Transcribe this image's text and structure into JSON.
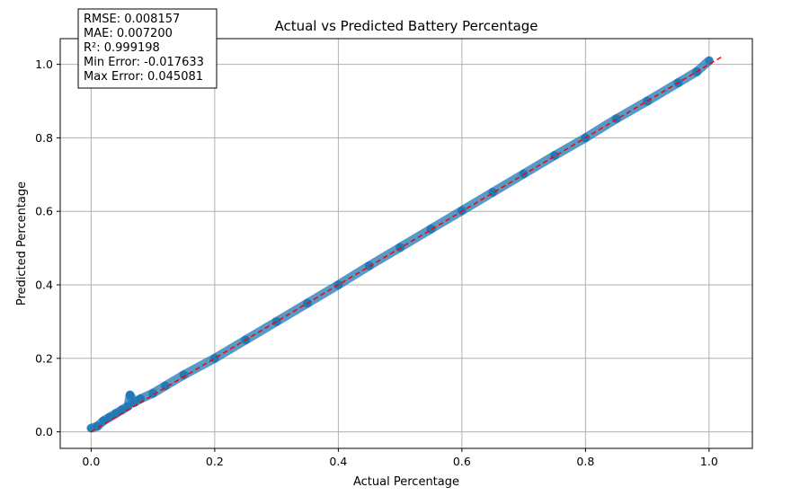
{
  "chart_data": {
    "type": "scatter",
    "title": "Actual vs Predicted Battery Percentage",
    "xlabel": "Actual Percentage",
    "ylabel": "Predicted Percentage",
    "xlim": [
      -0.05,
      1.07
    ],
    "ylim": [
      -0.045,
      1.07
    ],
    "x_ticks": [
      0.0,
      0.2,
      0.4,
      0.6,
      0.8,
      1.0
    ],
    "y_ticks": [
      0.0,
      0.2,
      0.4,
      0.6,
      0.8,
      1.0
    ],
    "x_tick_labels": [
      "0.0",
      "0.2",
      "0.4",
      "0.6",
      "0.8",
      "1.0"
    ],
    "y_tick_labels": [
      "0.0",
      "0.2",
      "0.4",
      "0.6",
      "0.8",
      "1.0"
    ],
    "grid": true,
    "series": [
      {
        "color": "#1f77b4",
        "x": [
          0.0,
          0.01,
          0.02,
          0.03,
          0.04,
          0.05,
          0.06,
          0.063,
          0.07,
          0.08,
          0.1,
          0.12,
          0.15,
          0.2,
          0.25,
          0.3,
          0.35,
          0.4,
          0.45,
          0.5,
          0.55,
          0.6,
          0.65,
          0.7,
          0.75,
          0.8,
          0.85,
          0.9,
          0.95,
          0.98,
          1.0
        ],
        "y": [
          0.01,
          0.015,
          0.03,
          0.04,
          0.05,
          0.06,
          0.07,
          0.1,
          0.08,
          0.09,
          0.105,
          0.125,
          0.155,
          0.2,
          0.25,
          0.3,
          0.35,
          0.4,
          0.452,
          0.502,
          0.552,
          0.602,
          0.652,
          0.702,
          0.752,
          0.8,
          0.852,
          0.9,
          0.95,
          0.98,
          1.01
        ]
      }
    ],
    "reference_line": {
      "color": "#ff0000",
      "style": "dashed",
      "x": [
        0.0,
        1.02
      ],
      "y": [
        0.0,
        1.02
      ]
    },
    "stats_box": {
      "lines": [
        "RMSE: 0.008157",
        "MAE: 0.007200",
        "R²: 0.999198",
        "Min Error: -0.017633",
        "Max Error: 0.045081"
      ],
      "placement": "top-left"
    }
  }
}
